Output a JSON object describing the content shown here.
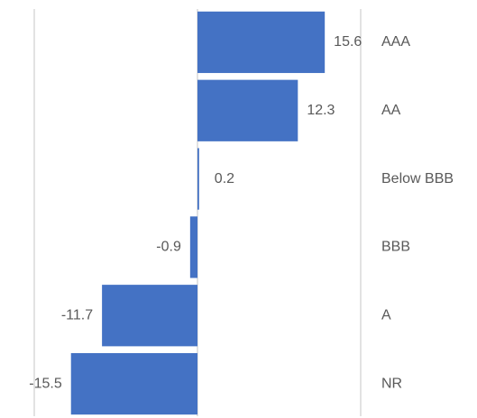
{
  "chart_data": {
    "type": "bar",
    "orientation": "horizontal",
    "categories": [
      "AAA",
      "AA",
      "Below BBB",
      "BBB",
      "A",
      "NR"
    ],
    "values": [
      15.6,
      12.3,
      0.2,
      -0.9,
      -11.7,
      -15.5
    ],
    "color": "#4472c4",
    "xlim": [
      -20,
      20
    ],
    "xticks": [
      -20,
      0,
      20
    ],
    "grid": true
  }
}
